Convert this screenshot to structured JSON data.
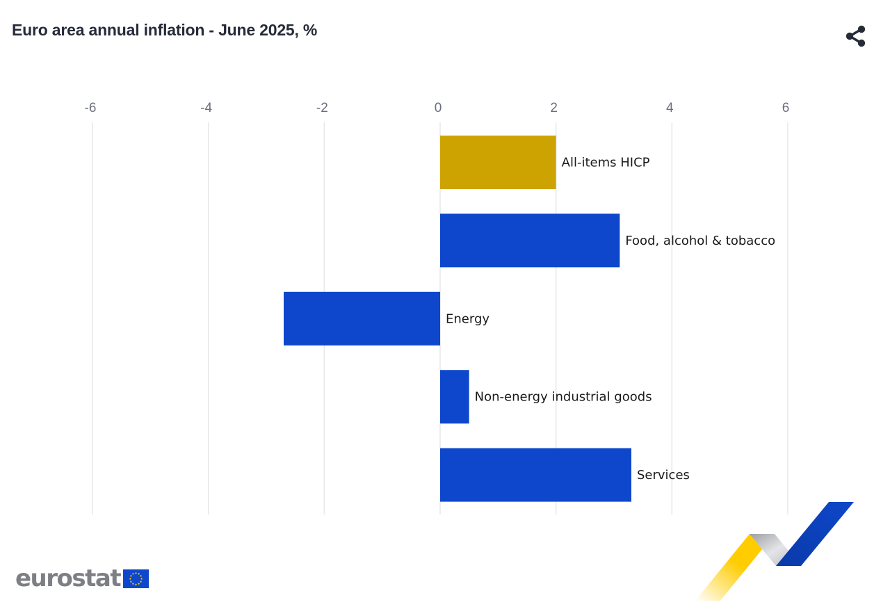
{
  "title": "Euro area annual inflation - June 2025, %",
  "icons": {
    "share": "share-icon",
    "flag": "eu-flag-icon"
  },
  "logo": {
    "text": "eurostat"
  },
  "colors": {
    "highlight": "#CCA300",
    "bar": "#0E47CB",
    "grid": "#E6E7EC",
    "tick": "#6B6F7A",
    "deco_yellow": "#FFCC00",
    "deco_grey": "#B9BBC0",
    "deco_blue": "#0E47CB"
  },
  "chart_data": {
    "type": "bar",
    "orientation": "horizontal",
    "title": "Euro area annual inflation - June 2025, %",
    "xlim": [
      -6,
      6
    ],
    "x_ticks": [
      -6,
      -4,
      -2,
      0,
      2,
      4,
      6
    ],
    "x_tick_position": "top",
    "grid": true,
    "legend": "none",
    "categories": [
      "All-items HICP",
      "Food, alcohol & tobacco",
      "Energy",
      "Non-energy industrial goods",
      "Services"
    ],
    "values": [
      2.0,
      3.1,
      -2.7,
      0.5,
      3.3
    ],
    "highlight_index": 0
  }
}
